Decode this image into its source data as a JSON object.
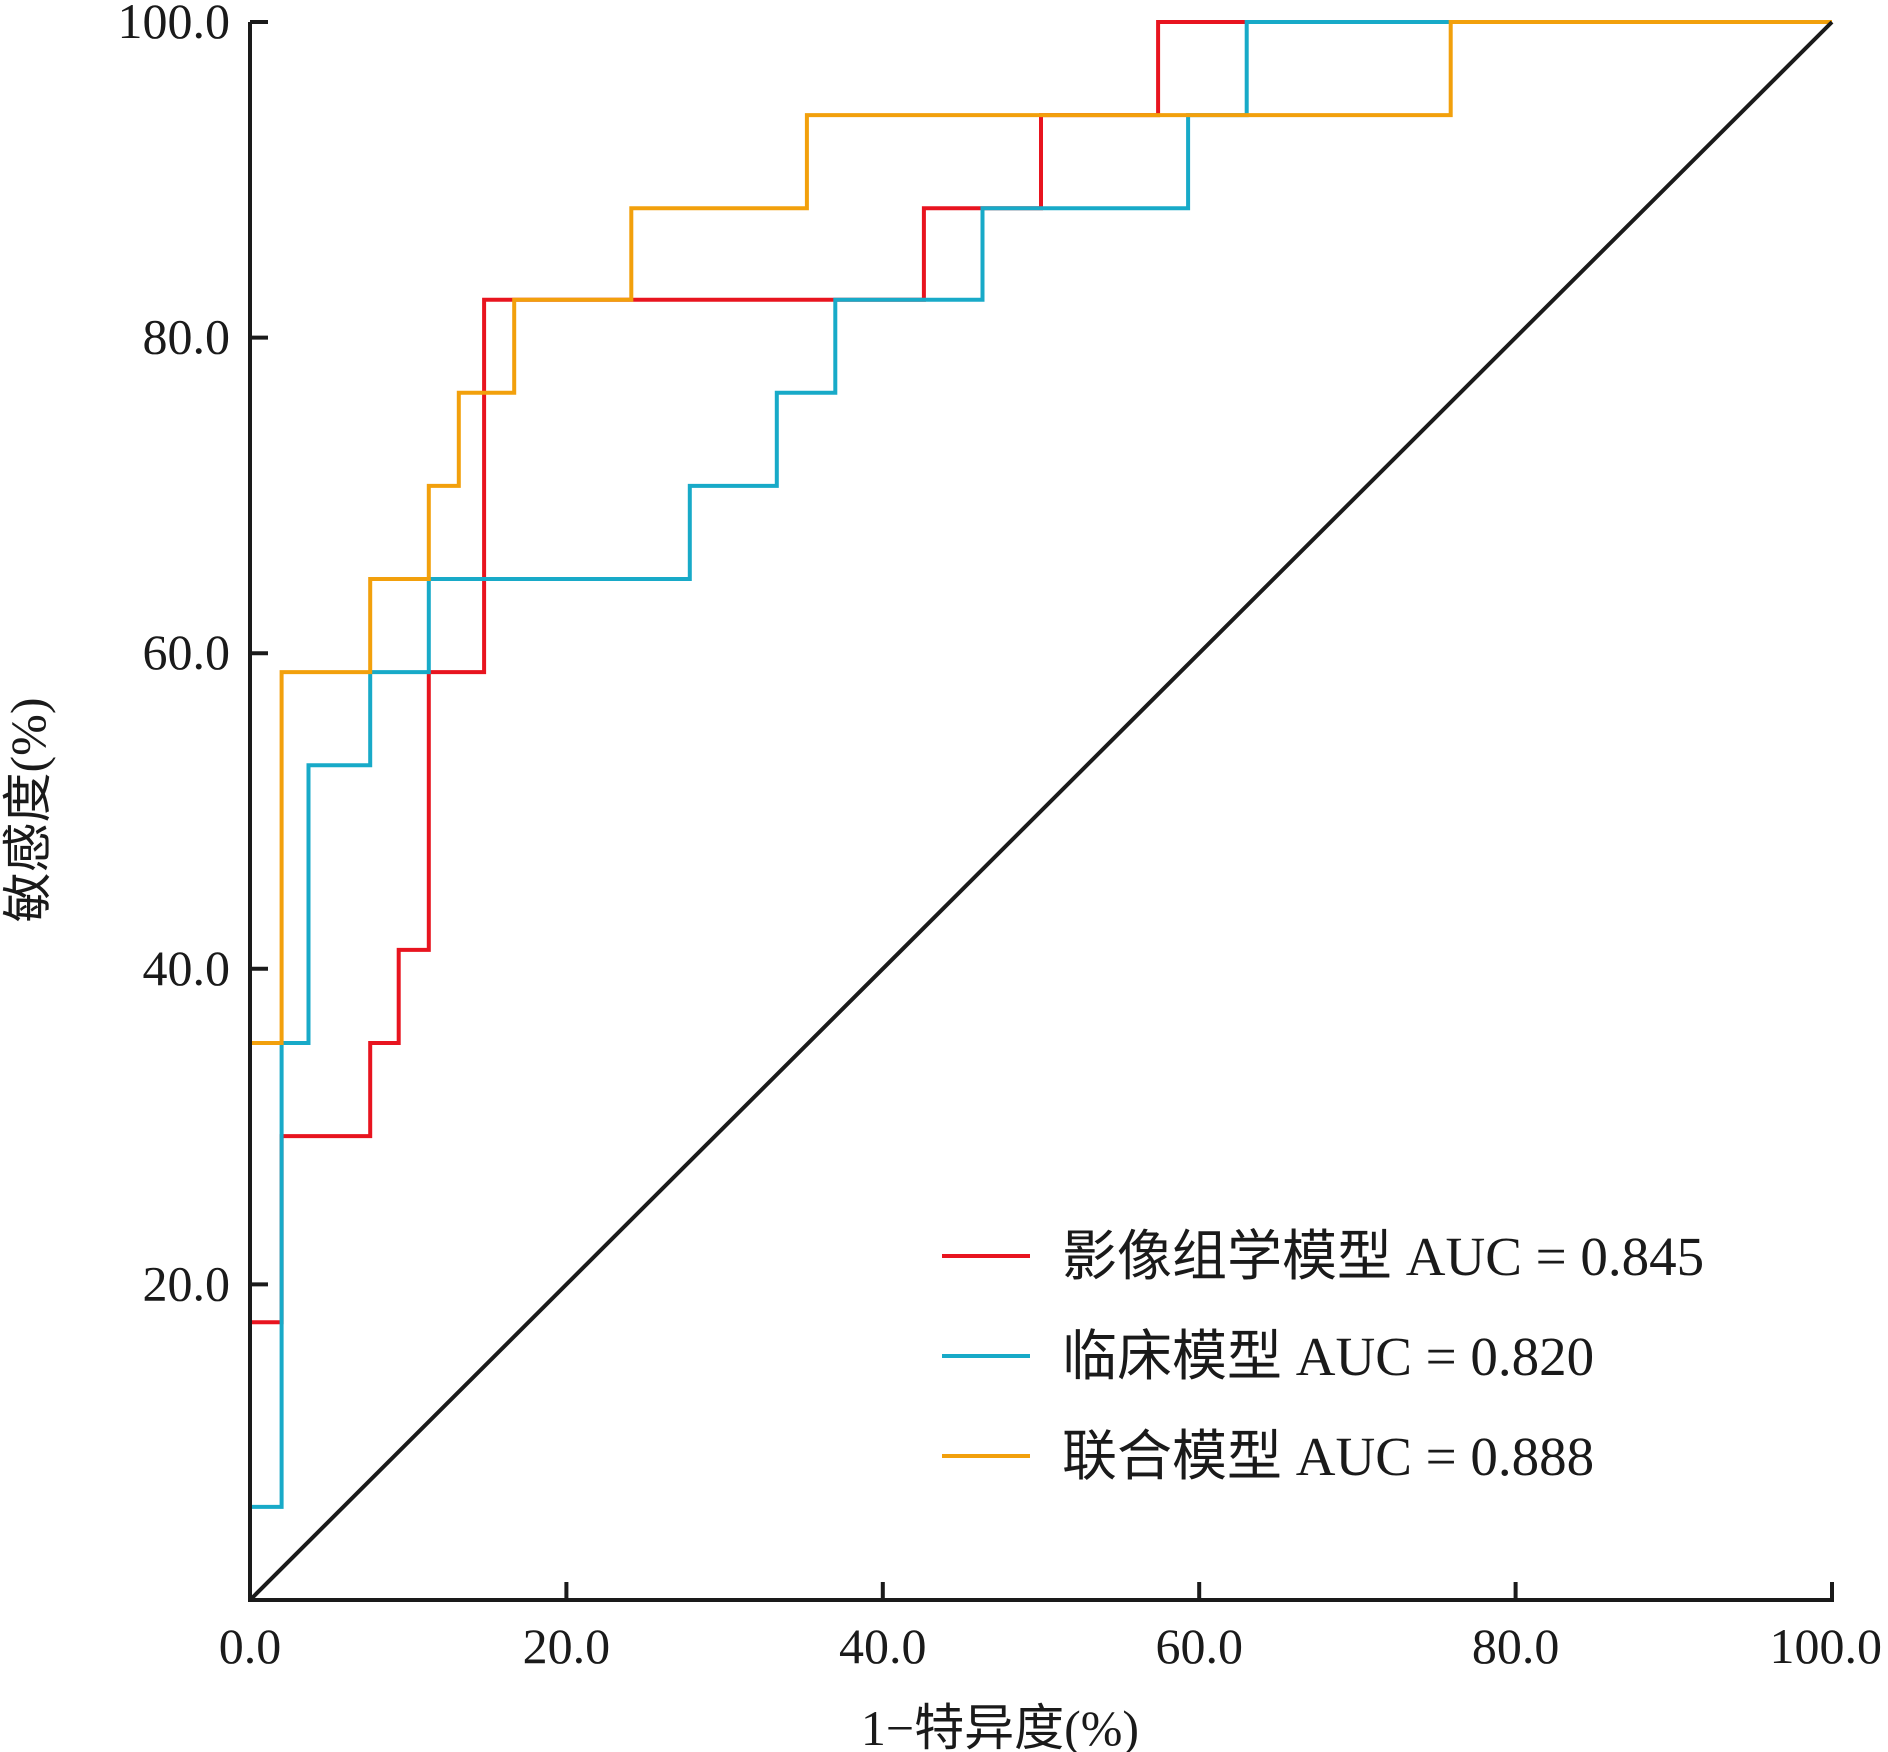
{
  "chart_data": {
    "type": "line",
    "xlabel": "1−特异度(%)",
    "ylabel": "敏感度(%)",
    "xlim": [
      0,
      100
    ],
    "ylim": [
      0,
      100
    ],
    "xticks": [
      "0.0",
      "20.0",
      "40.0",
      "60.0",
      "80.0",
      "100.0"
    ],
    "yticks": [
      "20.0",
      "40.0",
      "60.0",
      "80.0",
      "100.0"
    ],
    "grid": false,
    "legend_position": "bottom-right",
    "series": [
      {
        "name": "影像组学模型 AUC = 0.845",
        "color": "#e8141f",
        "x": [
          0,
          0,
          2,
          2,
          7.6,
          7.6,
          9.4,
          9.4,
          11.3,
          11.3,
          14.8,
          14.8,
          42.6,
          42.6,
          50,
          50,
          57.4,
          57.4,
          100
        ],
        "y": [
          0,
          17.6,
          17.6,
          29.4,
          29.4,
          35.3,
          35.3,
          41.2,
          41.2,
          58.8,
          58.8,
          82.4,
          82.4,
          88.2,
          88.2,
          94.1,
          94.1,
          100,
          100
        ]
      },
      {
        "name": "临床模型 AUC = 0.820",
        "color": "#18aac8",
        "x": [
          0,
          0,
          2,
          2,
          3.7,
          3.7,
          7.6,
          7.6,
          11.3,
          11.3,
          27.8,
          27.8,
          33.3,
          33.3,
          37,
          37,
          46.3,
          46.3,
          59.3,
          59.3,
          63,
          63,
          100
        ],
        "y": [
          0,
          5.9,
          5.9,
          35.3,
          35.3,
          52.9,
          52.9,
          58.8,
          58.8,
          64.7,
          64.7,
          70.6,
          70.6,
          76.5,
          76.5,
          82.4,
          82.4,
          88.2,
          88.2,
          94.1,
          94.1,
          100,
          100
        ]
      },
      {
        "name": "联合模型 AUC = 0.888",
        "color": "#f2a00c",
        "x": [
          0,
          0,
          2,
          2,
          7.6,
          7.6,
          11.3,
          11.3,
          13.2,
          13.2,
          16.7,
          16.7,
          24.1,
          24.1,
          35.2,
          35.2,
          75.9,
          75.9,
          100
        ],
        "y": [
          0,
          35.3,
          35.3,
          58.8,
          58.8,
          64.7,
          64.7,
          70.6,
          70.6,
          76.5,
          76.5,
          82.4,
          82.4,
          88.2,
          88.2,
          94.1,
          94.1,
          100,
          100
        ]
      },
      {
        "color": "#1a1a1a",
        "x": [
          0,
          100
        ],
        "y": [
          0,
          100
        ]
      }
    ]
  }
}
